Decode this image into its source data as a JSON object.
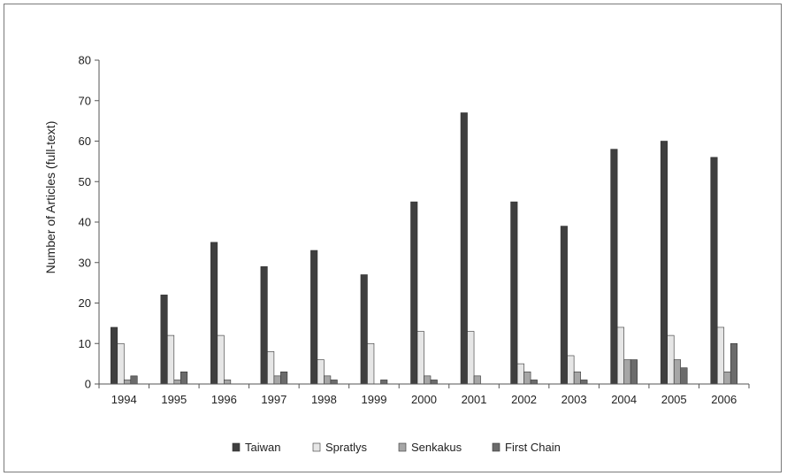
{
  "chart_data": {
    "type": "bar",
    "ylabel": "Number of Articles (full-text)",
    "ylim": [
      0,
      80
    ],
    "yticks": [
      0,
      10,
      20,
      30,
      40,
      50,
      60,
      70,
      80
    ],
    "grid": false,
    "legend_position": "bottom",
    "categories": [
      "1994",
      "1995",
      "1996",
      "1997",
      "1998",
      "1999",
      "2000",
      "2001",
      "2002",
      "2003",
      "2004",
      "2005",
      "2006"
    ],
    "series": [
      {
        "name": "Taiwan",
        "color": "#3f3f3f",
        "values": [
          14,
          22,
          35,
          29,
          33,
          27,
          45,
          67,
          45,
          39,
          58,
          60,
          56
        ]
      },
      {
        "name": "Spratlys",
        "color": "#e6e6e6",
        "values": [
          10,
          12,
          12,
          8,
          6,
          10,
          13,
          13,
          5,
          7,
          14,
          12,
          14
        ]
      },
      {
        "name": "Senkakus",
        "color": "#a6a6a6",
        "values": [
          1,
          1,
          1,
          2,
          2,
          0,
          2,
          2,
          3,
          3,
          6,
          6,
          3
        ]
      },
      {
        "name": "First Chain",
        "color": "#6b6b6b",
        "values": [
          2,
          3,
          0,
          3,
          1,
          1,
          1,
          0,
          1,
          1,
          6,
          4,
          10
        ]
      }
    ]
  }
}
